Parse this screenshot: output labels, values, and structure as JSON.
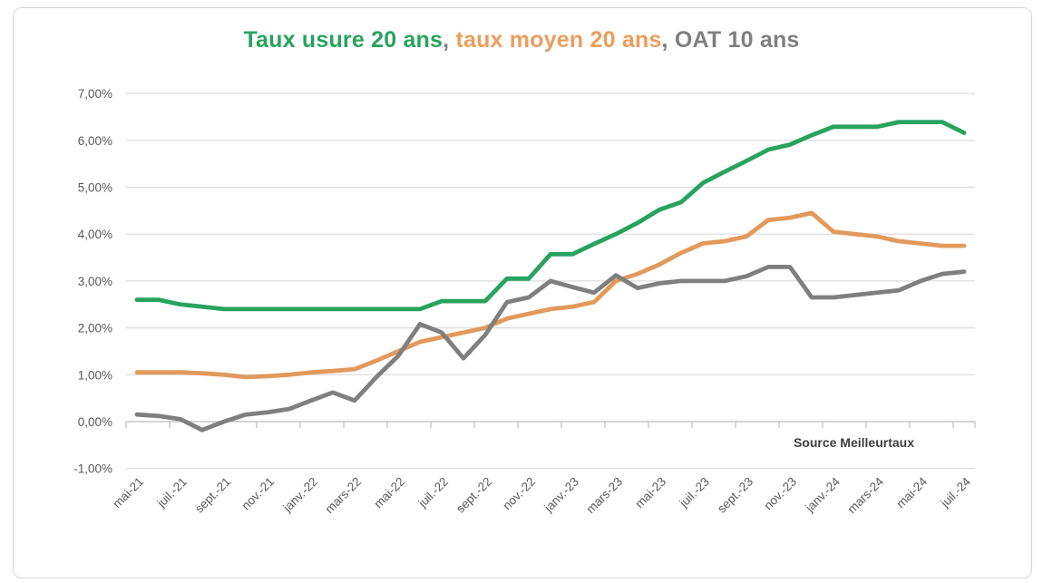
{
  "header": {
    "title_parts": [
      {
        "text": "Taux usure 20 ans"
      },
      {
        "text": ", "
      },
      {
        "text": "taux moyen 20 ans"
      },
      {
        "text": ", "
      },
      {
        "text": "OAT 10 ans"
      }
    ]
  },
  "chart_data": {
    "type": "line",
    "title": "Taux usure 20 ans, taux moyen 20 ans, OAT 10 ans",
    "source": "Source Meilleurtaux",
    "grid": true,
    "legend_position": "title-inline",
    "ylim": [
      -1,
      7
    ],
    "y_ticks": [
      "7,00%",
      "6,00%",
      "5,00%",
      "4,00%",
      "3,00%",
      "2,00%",
      "1,00%",
      "0,00%",
      "-1,00%"
    ],
    "x_tick_labels": [
      "mai-21",
      "juil.-21",
      "sept.-21",
      "nov.-21",
      "janv.-22",
      "mars-22",
      "mai-22",
      "juil.-22",
      "sept.-22",
      "nov.-22",
      "janv.-23",
      "mars-23",
      "mai-23",
      "juil.-23",
      "sept.-23",
      "nov.-23",
      "janv.-24",
      "mars-24",
      "mai-24",
      "juil.-24"
    ],
    "categories": [
      "mai-21",
      "juin-21",
      "juil.-21",
      "août-21",
      "sept.-21",
      "oct.-21",
      "nov.-21",
      "déc.-21",
      "janv.-22",
      "févr.-22",
      "mars-22",
      "avr.-22",
      "mai-22",
      "juin-22",
      "juil.-22",
      "août-22",
      "sept.-22",
      "oct.-22",
      "nov.-22",
      "déc.-22",
      "janv.-23",
      "févr.-23",
      "mars-23",
      "avr.-23",
      "mai-23",
      "juin-23",
      "juil.-23",
      "août-23",
      "sept.-23",
      "oct.-23",
      "nov.-23",
      "déc.-23",
      "janv.-24",
      "févr.-24",
      "mars-24",
      "avr.-24",
      "mai-24",
      "juin-24",
      "juil.-24"
    ],
    "series": [
      {
        "name": "Taux usure 20 ans",
        "color": "#28a35e",
        "values": [
          2.6,
          2.6,
          2.5,
          2.45,
          2.4,
          2.4,
          2.4,
          2.4,
          2.4,
          2.4,
          2.4,
          2.4,
          2.4,
          2.4,
          2.57,
          2.57,
          2.57,
          3.05,
          3.05,
          3.57,
          3.57,
          3.79,
          4.0,
          4.24,
          4.52,
          4.68,
          5.09,
          5.33,
          5.56,
          5.8,
          5.91,
          6.11,
          6.29,
          6.29,
          6.29,
          6.39,
          6.39,
          6.39,
          6.16
        ]
      },
      {
        "name": "taux moyen 20 ans",
        "color": "#e2995b",
        "values": [
          1.05,
          1.05,
          1.05,
          1.03,
          1.0,
          0.95,
          0.97,
          1.0,
          1.05,
          1.08,
          1.12,
          1.3,
          1.5,
          1.7,
          1.8,
          1.9,
          2.0,
          2.2,
          2.3,
          2.4,
          2.45,
          2.55,
          3.0,
          3.15,
          3.35,
          3.6,
          3.8,
          3.85,
          3.95,
          4.3,
          4.35,
          4.45,
          4.05,
          4.0,
          3.95,
          3.85,
          3.8,
          3.75,
          3.75
        ]
      },
      {
        "name": "OAT 10 ans",
        "color": "#7f7f7f",
        "values": [
          0.15,
          0.12,
          0.05,
          -0.18,
          0.0,
          0.15,
          0.2,
          0.27,
          0.45,
          0.62,
          0.45,
          0.95,
          1.4,
          2.08,
          1.9,
          1.35,
          1.85,
          2.55,
          2.65,
          3.0,
          2.87,
          2.75,
          3.12,
          2.85,
          2.95,
          3.0,
          3.0,
          3.0,
          3.1,
          3.3,
          3.3,
          2.65,
          2.65,
          2.7,
          2.75,
          2.8,
          3.0,
          3.15,
          3.2
        ]
      }
    ],
    "axis_colors": {
      "tick_label": "#595959",
      "gridline": "#dcdcdc",
      "axis_line": "#bfbfbf"
    }
  }
}
